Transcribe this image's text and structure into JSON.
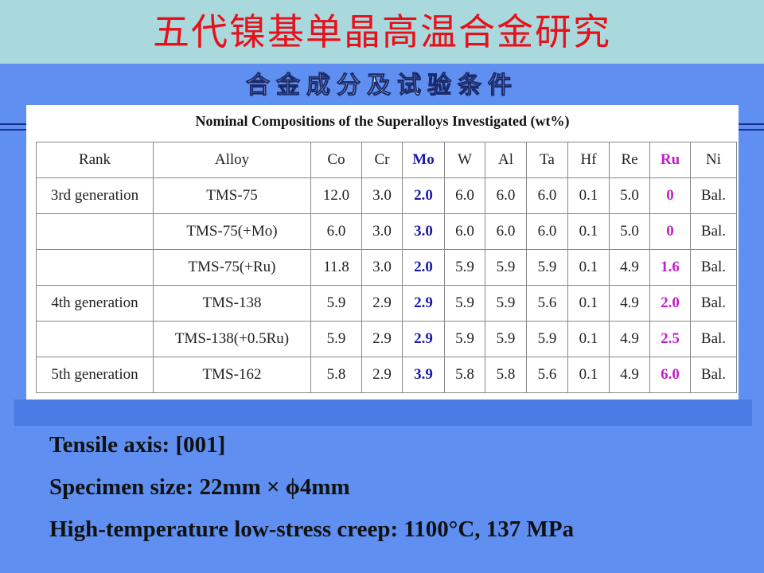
{
  "header": {
    "title": "五代镍基单晶高温合金研究",
    "subtitle": "合金成分及试验条件"
  },
  "table": {
    "caption": "Nominal Compositions of the Superalloys Investigated (wt%)",
    "columns": [
      "Rank",
      "Alloy",
      "Co",
      "Cr",
      "Mo",
      "W",
      "Al",
      "Ta",
      "Hf",
      "Re",
      "Ru",
      "Ni"
    ],
    "rows": [
      [
        "3rd generation",
        "TMS-75",
        "12.0",
        "3.0",
        "2.0",
        "6.0",
        "6.0",
        "6.0",
        "0.1",
        "5.0",
        "0",
        "Bal."
      ],
      [
        null,
        "TMS-75(+Mo)",
        "6.0",
        "3.0",
        "3.0",
        "6.0",
        "6.0",
        "6.0",
        "0.1",
        "5.0",
        "0",
        "Bal."
      ],
      [
        null,
        "TMS-75(+Ru)",
        "11.8",
        "3.0",
        "2.0",
        "5.9",
        "5.9",
        "5.9",
        "0.1",
        "4.9",
        "1.6",
        "Bal."
      ],
      [
        "4th generation",
        "TMS-138",
        "5.9",
        "2.9",
        "2.9",
        "5.9",
        "5.9",
        "5.6",
        "0.1",
        "4.9",
        "2.0",
        "Bal."
      ],
      [
        null,
        "TMS-138(+0.5Ru)",
        "5.9",
        "2.9",
        "2.9",
        "5.9",
        "5.9",
        "5.9",
        "0.1",
        "4.9",
        "2.5",
        "Bal."
      ],
      [
        "5th generation",
        "TMS-162",
        "5.8",
        "2.9",
        "3.9",
        "5.8",
        "5.8",
        "5.6",
        "0.1",
        "4.9",
        "6.0",
        "Bal."
      ]
    ]
  },
  "conditions": [
    "Tensile axis: [001]",
    "Specimen size: 22mm × ϕ4mm",
    "High-temperature low-stress creep: 1100°C, 137 MPa"
  ]
}
